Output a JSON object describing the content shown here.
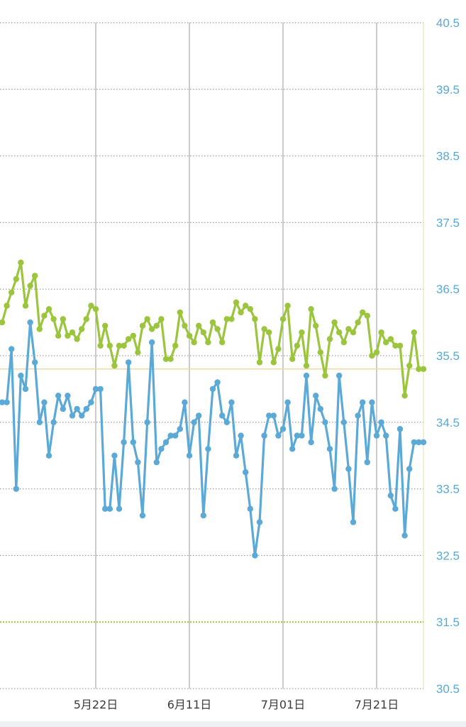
{
  "chart_data": {
    "type": "line",
    "title": "",
    "xlabel": "",
    "ylabel": "",
    "ylim": [
      30.5,
      40.5
    ],
    "yticks": [
      "40.5",
      "39.5",
      "38.5",
      "37.5",
      "36.5",
      "35.5",
      "34.5",
      "33.5",
      "32.5",
      "31.5",
      "30.5"
    ],
    "xticks": [
      {
        "label": "5月22日",
        "day": 20
      },
      {
        "label": "6月11日",
        "day": 40
      },
      {
        "label": "7月01日",
        "day": 60
      },
      {
        "label": "7月21日",
        "day": 80
      }
    ],
    "grid": true,
    "reference_lines": [
      {
        "value": 35.3,
        "color": "#f0d9a8",
        "style": "solid"
      },
      {
        "value": 31.5,
        "color": "#9bc53d",
        "style": "dotted"
      }
    ],
    "series": [
      {
        "color": "#9bc53d",
        "x": [
          0,
          1,
          2,
          3,
          4,
          5,
          6,
          7,
          8,
          9,
          10,
          11,
          12,
          13,
          14,
          15,
          16,
          17,
          18,
          19,
          20,
          21,
          22,
          23,
          24,
          25,
          26,
          27,
          28,
          29,
          30,
          31,
          32,
          33,
          34,
          35,
          36,
          37,
          38,
          39,
          40,
          41,
          42,
          43,
          44,
          45,
          46,
          47,
          48,
          49,
          50,
          51,
          52,
          53,
          54,
          55,
          56,
          57,
          58,
          59,
          60,
          61,
          62,
          63,
          64,
          65,
          66,
          67,
          68,
          69,
          70,
          71,
          72,
          73,
          74,
          75,
          76,
          77,
          78,
          79,
          80,
          81,
          82,
          83,
          84,
          85,
          86,
          87,
          88,
          89,
          90
        ],
        "y": [
          36.0,
          36.25,
          36.45,
          36.65,
          36.9,
          36.25,
          36.55,
          36.7,
          35.9,
          36.1,
          36.2,
          36.05,
          35.8,
          36.05,
          35.8,
          35.85,
          35.75,
          35.9,
          36.05,
          36.25,
          36.2,
          35.65,
          35.95,
          35.65,
          35.35,
          35.65,
          35.65,
          35.75,
          35.8,
          35.55,
          35.95,
          36.05,
          35.9,
          35.95,
          36.05,
          35.45,
          35.45,
          35.65,
          36.15,
          35.95,
          35.8,
          35.7,
          35.95,
          35.85,
          35.7,
          36.0,
          35.9,
          35.7,
          36.05,
          36.05,
          36.3,
          36.15,
          36.25,
          36.2,
          36.05,
          35.4,
          35.9,
          35.85,
          35.4,
          35.6,
          36.05,
          36.25,
          35.45,
          35.65,
          35.85,
          35.35,
          36.2,
          35.95,
          35.55,
          35.2,
          35.75,
          36.0,
          35.85,
          35.7,
          35.9,
          35.85,
          36.0,
          36.15,
          36.1,
          35.5,
          35.55,
          35.85,
          35.7,
          35.75,
          35.65,
          35.65,
          34.9,
          35.35,
          35.85,
          35.3,
          35.3
        ]
      },
      {
        "color": "#5aa9d6",
        "x": [
          0,
          1,
          2,
          3,
          4,
          5,
          6,
          7,
          8,
          9,
          10,
          11,
          12,
          13,
          14,
          15,
          16,
          17,
          18,
          19,
          20,
          21,
          22,
          23,
          24,
          25,
          26,
          27,
          28,
          29,
          30,
          31,
          32,
          33,
          34,
          35,
          36,
          37,
          38,
          39,
          40,
          41,
          42,
          43,
          44,
          45,
          46,
          47,
          48,
          49,
          50,
          51,
          52,
          53,
          54,
          55,
          56,
          57,
          58,
          59,
          60,
          61,
          62,
          63,
          64,
          65,
          66,
          67,
          68,
          69,
          70,
          71,
          72,
          73,
          74,
          75,
          76,
          77,
          78,
          79,
          80,
          81,
          82,
          83,
          84,
          85,
          86,
          87,
          88,
          89,
          90
        ],
        "y": [
          34.8,
          34.8,
          35.6,
          33.5,
          35.2,
          35.0,
          36.0,
          35.4,
          34.5,
          34.8,
          34.0,
          34.5,
          34.9,
          34.7,
          34.9,
          34.6,
          34.7,
          34.6,
          34.7,
          34.8,
          35.0,
          35.0,
          33.2,
          33.2,
          34.0,
          33.2,
          34.2,
          35.4,
          34.2,
          33.9,
          33.1,
          34.5,
          35.7,
          33.9,
          34.1,
          34.2,
          34.3,
          34.3,
          34.4,
          34.8,
          34.0,
          34.5,
          34.6,
          33.1,
          34.1,
          35.0,
          35.1,
          34.6,
          34.5,
          34.8,
          34.0,
          34.3,
          33.75,
          33.2,
          32.5,
          33.0,
          34.3,
          34.6,
          34.6,
          34.3,
          34.4,
          34.8,
          34.1,
          34.3,
          34.3,
          35.2,
          34.2,
          34.9,
          34.7,
          34.5,
          34.1,
          33.5,
          35.2,
          34.5,
          33.8,
          33.0,
          34.6,
          34.8,
          33.9,
          34.8,
          34.3,
          34.5,
          34.3,
          33.4,
          33.2,
          34.4,
          32.8,
          33.8,
          34.2,
          34.2,
          34.2
        ]
      }
    ]
  }
}
